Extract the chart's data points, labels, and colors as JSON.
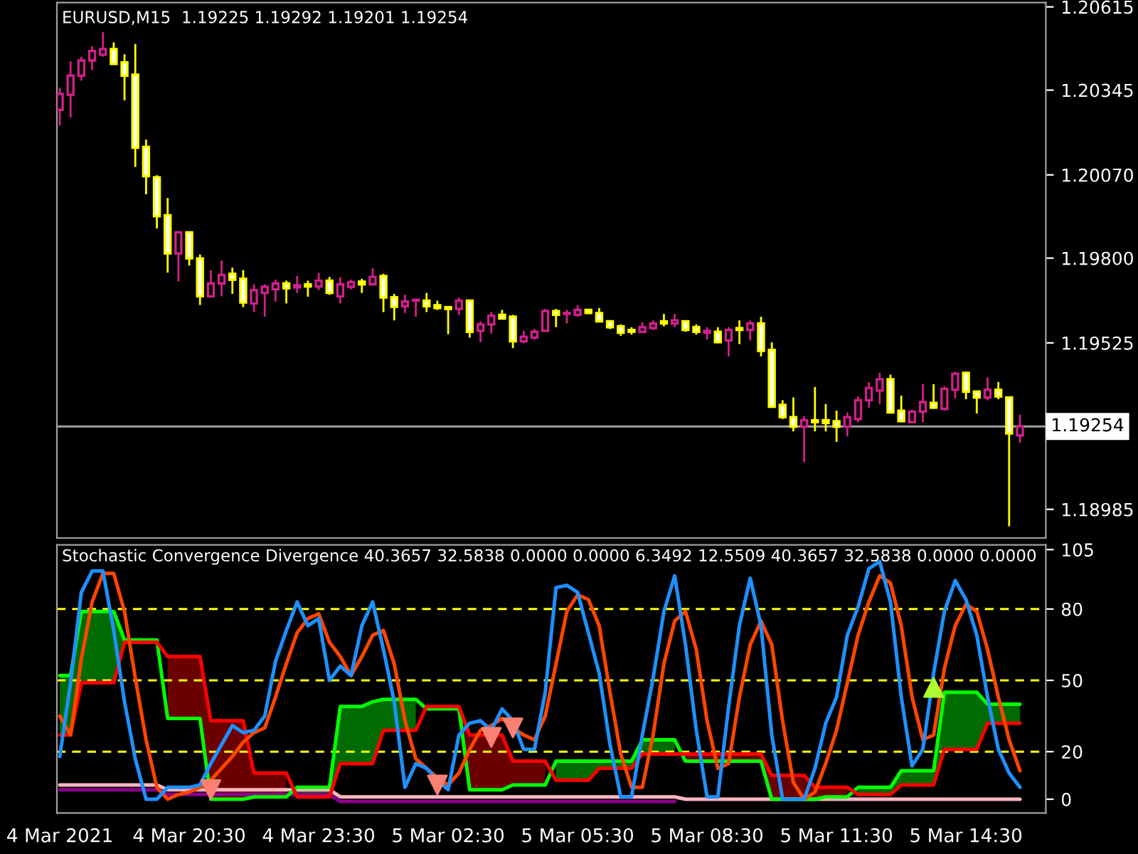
{
  "chart_data": [
    {
      "type": "candlestick",
      "title": "EURUSD,M15  1.19225 1.19292 1.19201 1.19254",
      "x": [
        "2021-03-04T17:30",
        "2021-03-04T17:45",
        "2021-03-04T18:00",
        "2021-03-04T18:15",
        "2021-03-04T18:30",
        "2021-03-04T18:45",
        "2021-03-04T19:00",
        "2021-03-04T19:15",
        "2021-03-04T19:30",
        "2021-03-04T19:45",
        "2021-03-04T20:00",
        "2021-03-04T20:15",
        "2021-03-04T20:30",
        "2021-03-04T20:45",
        "2021-03-04T21:00",
        "2021-03-04T21:15",
        "2021-03-04T21:30",
        "2021-03-04T21:45",
        "2021-03-04T22:00",
        "2021-03-04T22:15",
        "2021-03-04T22:30",
        "2021-03-04T22:45",
        "2021-03-04T23:00",
        "2021-03-04T23:15",
        "2021-03-04T23:30",
        "2021-03-04T23:45",
        "2021-03-05T00:00",
        "2021-03-05T00:15",
        "2021-03-05T00:30",
        "2021-03-05T00:45",
        "2021-03-05T01:00",
        "2021-03-05T01:15",
        "2021-03-05T01:30",
        "2021-03-05T01:45",
        "2021-03-05T02:00",
        "2021-03-05T02:15",
        "2021-03-05T02:30",
        "2021-03-05T02:45",
        "2021-03-05T03:00",
        "2021-03-05T03:15",
        "2021-03-05T03:30",
        "2021-03-05T03:45",
        "2021-03-05T04:00",
        "2021-03-05T04:15",
        "2021-03-05T04:30",
        "2021-03-05T04:45",
        "2021-03-05T05:00",
        "2021-03-05T05:15",
        "2021-03-05T05:30",
        "2021-03-05T05:45",
        "2021-03-05T06:00",
        "2021-03-05T06:15",
        "2021-03-05T06:30",
        "2021-03-05T06:45",
        "2021-03-05T07:00",
        "2021-03-05T07:15",
        "2021-03-05T07:30",
        "2021-03-05T07:45",
        "2021-03-05T08:00",
        "2021-03-05T08:15",
        "2021-03-05T08:30",
        "2021-03-05T08:45",
        "2021-03-05T09:00",
        "2021-03-05T09:15",
        "2021-03-05T09:30",
        "2021-03-05T09:45",
        "2021-03-05T10:00",
        "2021-03-05T10:15",
        "2021-03-05T10:30",
        "2021-03-05T10:45",
        "2021-03-05T11:00",
        "2021-03-05T11:15",
        "2021-03-05T11:30",
        "2021-03-05T11:45",
        "2021-03-05T12:00",
        "2021-03-05T12:15",
        "2021-03-05T12:30",
        "2021-03-05T12:45",
        "2021-03-05T13:00",
        "2021-03-05T13:15",
        "2021-03-05T13:30",
        "2021-03-05T13:45",
        "2021-03-05T14:00",
        "2021-03-05T14:15",
        "2021-03-05T14:30",
        "2021-03-05T14:45",
        "2021-03-05T15:00",
        "2021-03-05T15:15",
        "2021-03-05T15:30",
        "2021-03-05T15:45"
      ],
      "ohlc": [
        [
          1.20281,
          1.20353,
          1.2023,
          1.20333
        ],
        [
          1.2033,
          1.20438,
          1.20256,
          1.20392
        ],
        [
          1.20392,
          1.20453,
          1.20376,
          1.20441
        ],
        [
          1.20441,
          1.20487,
          1.2041,
          1.20472
        ],
        [
          1.2046,
          1.20533,
          1.20453,
          1.20478
        ],
        [
          1.20478,
          1.205,
          1.20427,
          1.2043
        ],
        [
          1.20435,
          1.20461,
          1.20312,
          1.20392
        ],
        [
          1.20395,
          1.20495,
          1.20096,
          1.20158
        ],
        [
          1.20161,
          1.20184,
          1.20007,
          1.20066
        ],
        [
          1.20062,
          1.20069,
          1.19896,
          1.19936
        ],
        [
          1.19939,
          1.19995,
          1.19753,
          1.19815
        ],
        [
          1.19815,
          1.19884,
          1.19725,
          1.19884
        ],
        [
          1.19884,
          1.19884,
          1.19776,
          1.19799
        ],
        [
          1.19799,
          1.19812,
          1.19648,
          1.19676
        ],
        [
          1.19676,
          1.19761,
          1.19672,
          1.19718
        ],
        [
          1.19718,
          1.19792,
          1.19676,
          1.19745
        ],
        [
          1.19749,
          1.19769,
          1.19684,
          1.1973
        ],
        [
          1.19733,
          1.19761,
          1.19641,
          1.19656
        ],
        [
          1.19653,
          1.19715,
          1.19625,
          1.19696
        ],
        [
          1.19687,
          1.19715,
          1.1961,
          1.19707
        ],
        [
          1.19699,
          1.1973,
          1.19659,
          1.19718
        ],
        [
          1.19718,
          1.19727,
          1.19653,
          1.19702
        ],
        [
          1.19705,
          1.19742,
          1.19687,
          1.19712
        ],
        [
          1.19715,
          1.19727,
          1.19675,
          1.19708
        ],
        [
          1.19708,
          1.19752,
          1.19696,
          1.19727
        ],
        [
          1.19727,
          1.19739,
          1.19681,
          1.19687
        ],
        [
          1.19676,
          1.19738,
          1.19653,
          1.19715
        ],
        [
          1.19707,
          1.1973,
          1.19699,
          1.19722
        ],
        [
          1.19724,
          1.19733,
          1.19687,
          1.19715
        ],
        [
          1.19715,
          1.19767,
          1.19712,
          1.19739
        ],
        [
          1.19742,
          1.19749,
          1.19625,
          1.19672
        ],
        [
          1.19673,
          1.19684,
          1.19598,
          1.19642
        ],
        [
          1.19644,
          1.19681,
          1.19622,
          1.19659
        ],
        [
          1.19662,
          1.19668,
          1.1961,
          1.19665
        ],
        [
          1.19662,
          1.19687,
          1.19625,
          1.19644
        ],
        [
          1.19647,
          1.19662,
          1.19632,
          1.19638
        ],
        [
          1.19641,
          1.19641,
          1.19553,
          1.19635
        ],
        [
          1.19635,
          1.19672,
          1.19616,
          1.19662
        ],
        [
          1.19662,
          1.19662,
          1.19542,
          1.19561
        ],
        [
          1.19564,
          1.19595,
          1.19527,
          1.19585
        ],
        [
          1.19585,
          1.19625,
          1.19555,
          1.19613
        ],
        [
          1.19616,
          1.19632,
          1.19601,
          1.19604
        ],
        [
          1.1961,
          1.19616,
          1.19508,
          1.1953
        ],
        [
          1.1953,
          1.19564,
          1.19524,
          1.19545
        ],
        [
          1.19542,
          1.1957,
          1.19536,
          1.19561
        ],
        [
          1.19564,
          1.19635,
          1.19561,
          1.19628
        ],
        [
          1.19628,
          1.19635,
          1.19576,
          1.19616
        ],
        [
          1.19619,
          1.19632,
          1.19588,
          1.19622
        ],
        [
          1.19616,
          1.19647,
          1.1961,
          1.19632
        ],
        [
          1.19632,
          1.19635,
          1.19619,
          1.19622
        ],
        [
          1.19622,
          1.19638,
          1.19592,
          1.19595
        ],
        [
          1.19595,
          1.19598,
          1.1957,
          1.19576
        ],
        [
          1.19579,
          1.19585,
          1.19548,
          1.19558
        ],
        [
          1.19567,
          1.19576,
          1.19552,
          1.19561
        ],
        [
          1.19561,
          1.19592,
          1.19558,
          1.19576
        ],
        [
          1.19573,
          1.19598,
          1.19567,
          1.19588
        ],
        [
          1.19595,
          1.19619,
          1.19579,
          1.19588
        ],
        [
          1.19588,
          1.19619,
          1.19576,
          1.19598
        ],
        [
          1.19595,
          1.19598,
          1.19561,
          1.19567
        ],
        [
          1.19576,
          1.19585,
          1.19552,
          1.19561
        ],
        [
          1.19558,
          1.19576,
          1.19536,
          1.19564
        ],
        [
          1.19561,
          1.19576,
          1.19524,
          1.19527
        ],
        [
          1.19533,
          1.19576,
          1.19481,
          1.19567
        ],
        [
          1.19573,
          1.19598,
          1.19521,
          1.19567
        ],
        [
          1.19567,
          1.19598,
          1.19533,
          1.19588
        ],
        [
          1.19588,
          1.1961,
          1.19481,
          1.19499
        ],
        [
          1.19502,
          1.19527,
          1.19315,
          1.19318
        ],
        [
          1.19324,
          1.19339,
          1.19278,
          1.19284
        ],
        [
          1.19284,
          1.19348,
          1.19238,
          1.19253
        ],
        [
          1.19253,
          1.19287,
          1.19138,
          1.19274
        ],
        [
          1.19274,
          1.19382,
          1.19238,
          1.19268
        ],
        [
          1.19274,
          1.19327,
          1.19238,
          1.19265
        ],
        [
          1.19271,
          1.19305,
          1.19204,
          1.19253
        ],
        [
          1.19253,
          1.19299,
          1.19222,
          1.19284
        ],
        [
          1.19278,
          1.19351,
          1.19268,
          1.19339
        ],
        [
          1.19339,
          1.19398,
          1.19315,
          1.19379
        ],
        [
          1.1937,
          1.19428,
          1.19327,
          1.19407
        ],
        [
          1.19407,
          1.19422,
          1.19296,
          1.19299
        ],
        [
          1.19305,
          1.19354,
          1.19268,
          1.19271
        ],
        [
          1.19268,
          1.19308,
          1.19265,
          1.19302
        ],
        [
          1.19302,
          1.19391,
          1.19268,
          1.19333
        ],
        [
          1.1933,
          1.19391,
          1.19311,
          1.19315
        ],
        [
          1.19311,
          1.19385,
          1.19305,
          1.19376
        ],
        [
          1.19373,
          1.19431,
          1.19345,
          1.19425
        ],
        [
          1.19428,
          1.19431,
          1.19342,
          1.19367
        ],
        [
          1.19367,
          1.1937,
          1.19296,
          1.19348
        ],
        [
          1.19348,
          1.19413,
          1.19339,
          1.19373
        ],
        [
          1.19373,
          1.19398,
          1.19342,
          1.19351
        ],
        [
          1.19348,
          1.19351,
          1.1893,
          1.19231
        ],
        [
          1.19225,
          1.19292,
          1.19201,
          1.19254
        ]
      ],
      "xlim": [
        "2021-03-04T17:26",
        "2021-03-05T16:21"
      ],
      "ylim": [
        1.18892,
        1.20629
      ],
      "yticks": [
        1.20615,
        1.20345,
        {
          "value": 1.2007,
          "label": "1.20070"
        },
        {
          "value": 1.198,
          "label": "1.19800"
        },
        1.19525,
        1.18985
      ],
      "tick_labels": "y",
      "ref_lines": [
        {
          "axis": "y",
          "value": 1.19254,
          "label": "1.19254",
          "color": "#a0a0a0"
        }
      ]
    },
    {
      "type": "line",
      "title": "Stochastic Convergence Divergence 40.3657 32.5838 0.0000 0.0000 6.3492 12.5509 40.3657 32.5838 0.0000 0.0000",
      "x": [
        "2021-03-04T17:30",
        "2021-03-04T17:45",
        "2021-03-04T18:00",
        "2021-03-04T18:15",
        "2021-03-04T18:30",
        "2021-03-04T18:45",
        "2021-03-04T19:00",
        "2021-03-04T19:15",
        "2021-03-04T19:30",
        "2021-03-04T19:45",
        "2021-03-04T20:00",
        "2021-03-04T20:15",
        "2021-03-04T20:30",
        "2021-03-04T20:45",
        "2021-03-04T21:00",
        "2021-03-04T21:15",
        "2021-03-04T21:30",
        "2021-03-04T21:45",
        "2021-03-04T22:00",
        "2021-03-04T22:15",
        "2021-03-04T22:30",
        "2021-03-04T22:45",
        "2021-03-04T23:00",
        "2021-03-04T23:15",
        "2021-03-04T23:30",
        "2021-03-04T23:45",
        "2021-03-05T00:00",
        "2021-03-05T00:15",
        "2021-03-05T00:30",
        "2021-03-05T00:45",
        "2021-03-05T01:00",
        "2021-03-05T01:15",
        "2021-03-05T01:30",
        "2021-03-05T01:45",
        "2021-03-05T02:00",
        "2021-03-05T02:15",
        "2021-03-05T02:30",
        "2021-03-05T02:45",
        "2021-03-05T03:00",
        "2021-03-05T03:15",
        "2021-03-05T03:30",
        "2021-03-05T03:45",
        "2021-03-05T04:00",
        "2021-03-05T04:15",
        "2021-03-05T04:30",
        "2021-03-05T04:45",
        "2021-03-05T05:00",
        "2021-03-05T05:15",
        "2021-03-05T05:30",
        "2021-03-05T05:45",
        "2021-03-05T06:00",
        "2021-03-05T06:15",
        "2021-03-05T06:30",
        "2021-03-05T06:45",
        "2021-03-05T07:00",
        "2021-03-05T07:15",
        "2021-03-05T07:30",
        "2021-03-05T07:45",
        "2021-03-05T08:00",
        "2021-03-05T08:15",
        "2021-03-05T08:30",
        "2021-03-05T08:45",
        "2021-03-05T09:00",
        "2021-03-05T09:15",
        "2021-03-05T09:30",
        "2021-03-05T09:45",
        "2021-03-05T10:00",
        "2021-03-05T10:15",
        "2021-03-05T10:30",
        "2021-03-05T10:45",
        "2021-03-05T11:00",
        "2021-03-05T11:15",
        "2021-03-05T11:30",
        "2021-03-05T11:45",
        "2021-03-05T12:00",
        "2021-03-05T12:15",
        "2021-03-05T12:30",
        "2021-03-05T12:45",
        "2021-03-05T13:00",
        "2021-03-05T13:15",
        "2021-03-05T13:30",
        "2021-03-05T13:45",
        "2021-03-05T14:00",
        "2021-03-05T14:15",
        "2021-03-05T14:30",
        "2021-03-05T14:45",
        "2021-03-05T15:00",
        "2021-03-05T15:15",
        "2021-03-05T15:30",
        "2021-03-05T15:45"
      ],
      "series": [
        {
          "color": "#8b008b",
          "values": [
            4,
            4,
            4,
            4,
            4,
            4,
            4,
            4,
            4,
            4,
            2,
            2,
            2,
            2,
            2,
            2,
            2,
            2,
            2,
            2,
            2,
            2,
            2,
            2,
            2,
            2,
            -1,
            -1,
            -1,
            -1,
            -1,
            -1,
            -1,
            -1,
            -1,
            -1,
            -1,
            -1,
            -1,
            -1,
            -1,
            -1,
            -1,
            -1,
            -1,
            -1,
            -1,
            -1,
            -1,
            -1,
            -1,
            -1,
            -1,
            -1,
            -1,
            -1,
            -1,
            -1,
            null,
            null,
            null,
            null,
            null,
            null,
            null,
            null,
            null,
            null,
            null,
            null,
            null,
            null,
            null,
            null,
            null,
            null,
            null,
            null,
            null,
            null,
            null,
            null,
            null,
            null,
            null,
            null,
            null,
            null,
            null,
            null
          ]
        },
        {
          "color": "#ffb6c1",
          "values": [
            6,
            6,
            6,
            6,
            6,
            6,
            6,
            6,
            6,
            6,
            4,
            4,
            4,
            4,
            4,
            4,
            4,
            4,
            4,
            4,
            4,
            4,
            4,
            4,
            4,
            4,
            1,
            1,
            1,
            1,
            1,
            1,
            1,
            1,
            1,
            1,
            1,
            1,
            1,
            1,
            1,
            1,
            1,
            1,
            1,
            1,
            1,
            1,
            1,
            1,
            1,
            1,
            1,
            1,
            1,
            1,
            1,
            1,
            0,
            0,
            0,
            0,
            0,
            0,
            0,
            0,
            0,
            0,
            0,
            0,
            0,
            0,
            0,
            0,
            0,
            0,
            0,
            0,
            0,
            0,
            0,
            0,
            0,
            0,
            0,
            0,
            0,
            0,
            0,
            0
          ]
        },
        {
          "color": "#00ff00",
          "values": [
            52,
            52,
            79,
            79,
            79,
            79,
            67,
            67,
            67,
            67,
            34,
            34,
            34,
            34,
            0,
            0,
            0,
            0,
            1,
            1,
            1,
            1,
            5,
            5,
            5,
            5,
            39,
            39,
            39,
            41,
            42,
            42,
            42,
            42,
            38,
            38,
            38,
            38,
            4,
            4,
            4,
            4,
            6,
            6,
            6,
            6,
            16,
            16,
            16,
            16,
            16,
            16,
            16,
            16,
            25,
            25,
            25,
            25,
            16,
            16,
            16,
            16,
            16,
            16,
            16,
            16,
            0,
            0,
            0,
            0,
            0,
            1,
            1,
            1,
            5,
            5,
            5,
            5,
            12,
            12,
            12,
            12,
            45,
            45,
            45,
            45,
            40,
            40,
            40,
            40
          ],
          "upper": [
            52,
            52,
            79,
            79,
            79,
            79,
            67,
            67,
            67,
            67,
            null,
            null,
            null,
            null,
            null,
            null,
            null,
            null,
            null,
            null,
            null,
            null,
            5,
            5,
            5,
            5,
            39,
            39,
            39,
            41,
            42,
            42,
            42,
            42,
            null,
            null,
            null,
            null,
            null,
            null,
            null,
            null,
            null,
            null,
            null,
            null,
            16,
            16,
            16,
            16,
            16,
            16,
            16,
            16,
            25,
            25,
            25,
            25,
            null,
            null,
            null,
            null,
            null,
            null,
            null,
            null,
            null,
            null,
            null,
            null,
            null,
            null,
            null,
            null,
            5,
            5,
            5,
            5,
            12,
            12,
            12,
            12,
            45,
            45,
            45,
            45,
            40,
            40,
            40,
            40
          ],
          "lower": [
            27,
            27,
            49,
            49,
            49,
            49,
            66,
            66,
            66,
            66,
            null,
            null,
            null,
            null,
            null,
            null,
            null,
            null,
            null,
            null,
            null,
            null,
            1,
            1,
            1,
            1,
            15,
            15,
            15,
            15,
            29,
            29,
            29,
            29,
            null,
            null,
            null,
            null,
            null,
            null,
            null,
            null,
            null,
            null,
            null,
            null,
            8,
            8,
            8,
            8,
            13,
            13,
            13,
            13,
            19,
            19,
            19,
            19,
            null,
            null,
            null,
            null,
            null,
            null,
            null,
            null,
            null,
            null,
            null,
            null,
            null,
            null,
            null,
            null,
            2,
            2,
            2,
            2,
            6,
            6,
            6,
            6,
            21,
            21,
            21,
            21,
            32,
            32,
            32,
            32
          ]
        },
        {
          "color": "#ff0000",
          "values": [
            27,
            27,
            49,
            49,
            49,
            49,
            66,
            66,
            66,
            66,
            60,
            60,
            60,
            60,
            33,
            33,
            33,
            33,
            11,
            11,
            11,
            11,
            1,
            1,
            1,
            1,
            15,
            15,
            15,
            15,
            29,
            29,
            29,
            29,
            39,
            39,
            39,
            39,
            27,
            27,
            27,
            27,
            16,
            16,
            16,
            16,
            8,
            8,
            8,
            8,
            13,
            13,
            13,
            13,
            19,
            19,
            19,
            19,
            19,
            19,
            19,
            19,
            19,
            19,
            19,
            19,
            10,
            10,
            10,
            10,
            5,
            5,
            5,
            5,
            2,
            2,
            2,
            2,
            6,
            6,
            6,
            6,
            21,
            21,
            21,
            21,
            32,
            32,
            32,
            32
          ],
          "upper": [
            null,
            null,
            null,
            null,
            null,
            null,
            null,
            null,
            null,
            null,
            60,
            60,
            60,
            60,
            33,
            33,
            33,
            33,
            11,
            11,
            11,
            11,
            null,
            null,
            null,
            null,
            null,
            null,
            null,
            null,
            null,
            null,
            null,
            null,
            39,
            39,
            39,
            39,
            27,
            27,
            27,
            27,
            16,
            16,
            16,
            16,
            null,
            null,
            null,
            null,
            null,
            null,
            null,
            null,
            null,
            null,
            null,
            null,
            19,
            19,
            19,
            19,
            19,
            19,
            19,
            19,
            10,
            10,
            10,
            10,
            5,
            5,
            5,
            5,
            null,
            null,
            null,
            null,
            null,
            null,
            null,
            null,
            null,
            null,
            null,
            null,
            null,
            null,
            null,
            null
          ],
          "lower": [
            null,
            null,
            null,
            null,
            null,
            null,
            null,
            null,
            null,
            null,
            34,
            34,
            34,
            34,
            0,
            0,
            0,
            0,
            1,
            1,
            1,
            1,
            null,
            null,
            null,
            null,
            null,
            null,
            null,
            null,
            null,
            null,
            null,
            null,
            38,
            38,
            38,
            38,
            4,
            4,
            4,
            4,
            6,
            6,
            6,
            6,
            null,
            null,
            null,
            null,
            null,
            null,
            null,
            null,
            null,
            null,
            null,
            null,
            16,
            16,
            16,
            16,
            16,
            16,
            16,
            16,
            0,
            0,
            0,
            0,
            0,
            1,
            1,
            1,
            null,
            null,
            null,
            null,
            null,
            null,
            null,
            null,
            null,
            null,
            null,
            null,
            null,
            null,
            null,
            null
          ]
        },
        {
          "color": "#ff4500",
          "values": [
            35,
            27,
            59,
            83,
            95,
            95,
            79,
            51,
            25,
            5,
            0,
            2,
            3,
            5,
            8,
            13,
            18,
            24,
            28,
            30,
            43,
            57,
            70,
            76,
            78,
            66,
            60,
            52,
            60,
            69,
            71,
            57,
            33,
            17,
            13,
            9,
            6,
            11,
            21,
            29,
            31,
            34,
            30,
            27,
            25,
            35,
            57,
            79,
            86,
            84,
            73,
            45,
            19,
            5,
            5,
            27,
            57,
            75,
            79,
            63,
            33,
            13,
            15,
            43,
            65,
            75,
            65,
            33,
            7,
            0,
            3,
            15,
            29,
            49,
            69,
            83,
            94,
            91,
            73,
            43,
            25,
            27,
            55,
            73,
            82,
            79,
            63,
            43,
            25,
            12
          ]
        },
        {
          "color": "#1e90ff",
          "values": [
            18,
            49,
            87,
            96,
            96,
            71,
            41,
            17,
            0,
            0,
            5,
            5,
            5,
            6,
            15,
            23,
            31,
            28,
            29,
            35,
            58,
            71,
            83,
            73,
            76,
            50,
            56,
            52,
            73,
            83,
            63,
            41,
            5,
            15,
            13,
            8,
            4,
            27,
            32,
            33,
            29,
            38,
            33,
            21,
            21,
            45,
            89,
            90,
            87,
            70,
            53,
            23,
            1,
            1,
            27,
            51,
            79,
            94,
            65,
            29,
            1,
            1,
            39,
            73,
            93,
            73,
            27,
            0,
            0,
            0,
            13,
            32,
            43,
            69,
            81,
            97,
            100,
            83,
            43,
            14,
            21,
            53,
            79,
            92,
            84,
            69,
            43,
            21,
            11,
            5
          ]
        },
        {
          "type": "scatter",
          "color": "#fa8072",
          "marker": "triangle_down",
          "x": [
            "2021-03-04T21:00",
            "2021-03-05T02:15",
            "2021-03-05T03:30",
            "2021-03-05T04:00"
          ],
          "values": [
            4,
            6,
            26,
            30
          ]
        },
        {
          "type": "scatter",
          "color": "#adff2f",
          "marker": "triangle",
          "x": [
            "2021-03-05T13:45"
          ],
          "values": [
            47
          ]
        }
      ],
      "xlim": [
        "2021-03-04T17:26",
        "2021-03-05T16:21"
      ],
      "xticks": [
        {
          "value": "2021-03-04T17:30",
          "label": "4 Mar 2021"
        },
        {
          "value": "2021-03-04T20:30",
          "label": "4 Mar 20:30"
        },
        {
          "value": "2021-03-04T23:30",
          "label": "4 Mar 23:30"
        },
        {
          "value": "2021-03-05T02:30",
          "label": "5 Mar 02:30"
        },
        {
          "value": "2021-03-05T05:30",
          "label": "5 Mar 05:30"
        },
        {
          "value": "2021-03-05T08:30",
          "label": "5 Mar 08:30"
        },
        {
          "value": "2021-03-05T11:30",
          "label": "5 Mar 11:30"
        },
        {
          "value": "2021-03-05T14:30",
          "label": "5 Mar 14:30"
        }
      ],
      "ylim": [
        -5.8,
        107
      ],
      "yticks": [
        105,
        80,
        50,
        20,
        0
      ],
      "ref_lines": [
        {
          "axis": "y",
          "value": 80,
          "label": null,
          "color": "#ffff00",
          "line_style": "dashed"
        },
        {
          "axis": "y",
          "value": 50,
          "label": null,
          "color": "#ffff00",
          "line_style": "dashed"
        },
        {
          "axis": "y",
          "value": 20,
          "label": null,
          "color": "#ffff00",
          "line_style": "dashed"
        }
      ]
    }
  ]
}
